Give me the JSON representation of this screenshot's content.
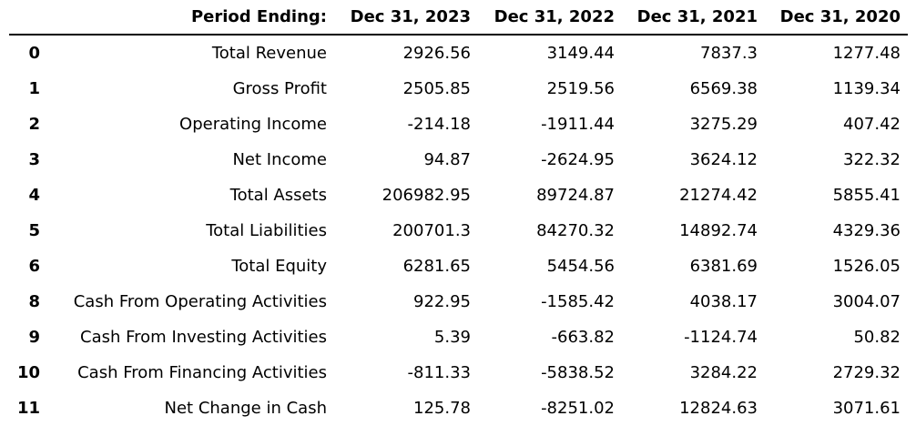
{
  "chart_data": {
    "type": "table",
    "header_label": "Period Ending:",
    "columns": [
      "Dec 31, 2023",
      "Dec 31, 2022",
      "Dec 31, 2021",
      "Dec 31, 2020"
    ],
    "rows": [
      {
        "index": "0",
        "label": "Total Revenue",
        "values": [
          "2926.56",
          "3149.44",
          "7837.3",
          "1277.48"
        ]
      },
      {
        "index": "1",
        "label": "Gross Profit",
        "values": [
          "2505.85",
          "2519.56",
          "6569.38",
          "1139.34"
        ]
      },
      {
        "index": "2",
        "label": "Operating Income",
        "values": [
          "-214.18",
          "-1911.44",
          "3275.29",
          "407.42"
        ]
      },
      {
        "index": "3",
        "label": "Net Income",
        "values": [
          "94.87",
          "-2624.95",
          "3624.12",
          "322.32"
        ]
      },
      {
        "index": "4",
        "label": "Total Assets",
        "values": [
          "206982.95",
          "89724.87",
          "21274.42",
          "5855.41"
        ]
      },
      {
        "index": "5",
        "label": "Total Liabilities",
        "values": [
          "200701.3",
          "84270.32",
          "14892.74",
          "4329.36"
        ]
      },
      {
        "index": "6",
        "label": "Total Equity",
        "values": [
          "6281.65",
          "5454.56",
          "6381.69",
          "1526.05"
        ]
      },
      {
        "index": "8",
        "label": "Cash From Operating Activities",
        "values": [
          "922.95",
          "-1585.42",
          "4038.17",
          "3004.07"
        ]
      },
      {
        "index": "9",
        "label": "Cash From Investing Activities",
        "values": [
          "5.39",
          "-663.82",
          "-1124.74",
          "50.82"
        ]
      },
      {
        "index": "10",
        "label": "Cash From Financing Activities",
        "values": [
          "-811.33",
          "-5838.52",
          "3284.22",
          "2729.32"
        ]
      },
      {
        "index": "11",
        "label": "Net Change in Cash",
        "values": [
          "125.78",
          "-8251.02",
          "12824.63",
          "3071.61"
        ]
      }
    ]
  }
}
